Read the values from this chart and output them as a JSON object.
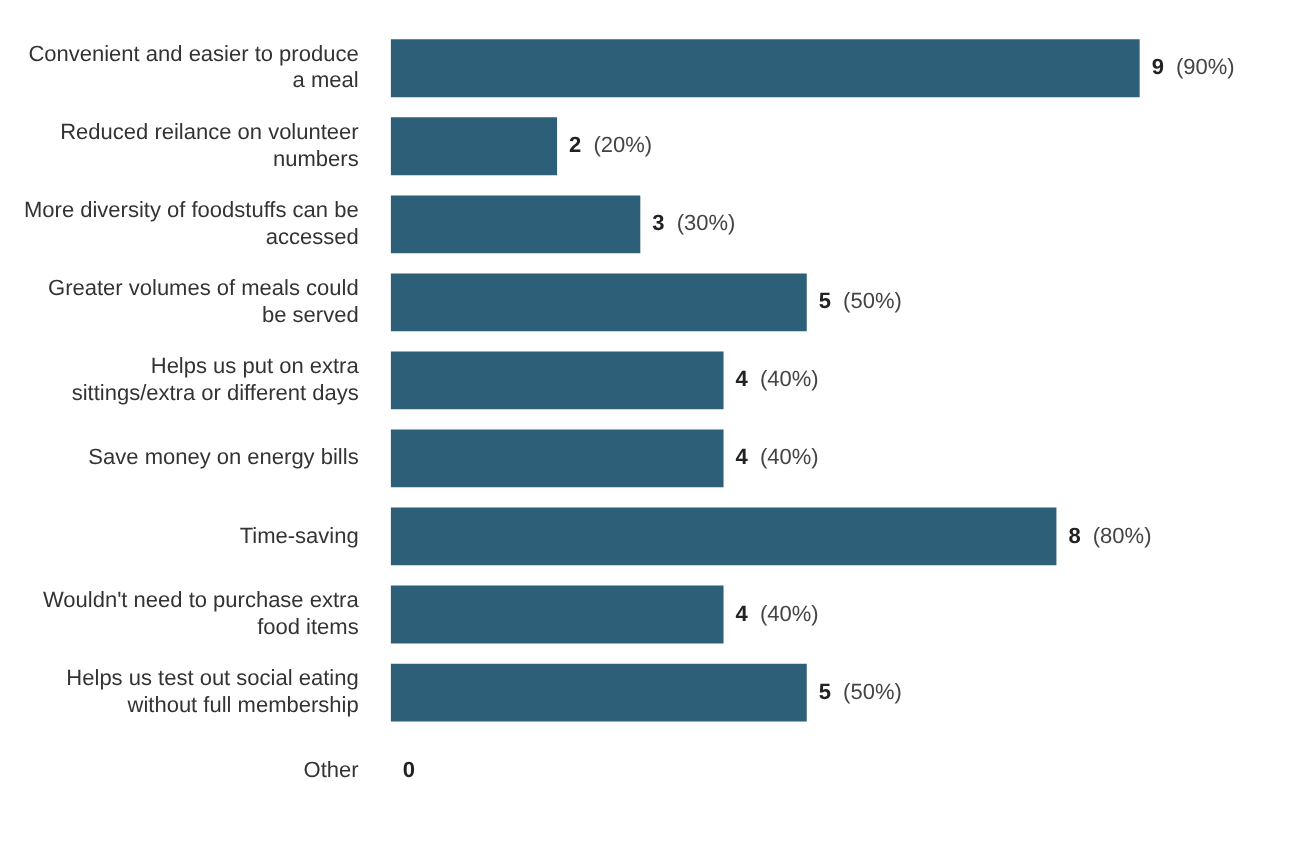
{
  "chart_data": {
    "type": "bar",
    "orientation": "horizontal",
    "categories": [
      "Convenient and easier to produce a meal",
      "Reduced reilance on volunteer numbers",
      "More diversity of foodstuffs can be accessed",
      "Greater volumes of meals could be served",
      "Helps us put on extra sittings/extra or different days",
      "Save money on energy bills",
      "Time-saving",
      "Wouldn't need to purchase extra food items",
      "Helps us test out social eating without full membership",
      "Other"
    ],
    "values": [
      9,
      2,
      3,
      5,
      4,
      4,
      8,
      4,
      5,
      0
    ],
    "color": "#2e5f78",
    "value_labels": [
      "9 (90%)",
      "2 (20%)",
      "3 (30%)",
      "5 (50%)",
      "4 (40%)",
      "4 (40%)",
      "8 (80%)",
      "4 (40%)",
      "5 (50%)",
      "0"
    ],
    "data_labels": false
  }
}
